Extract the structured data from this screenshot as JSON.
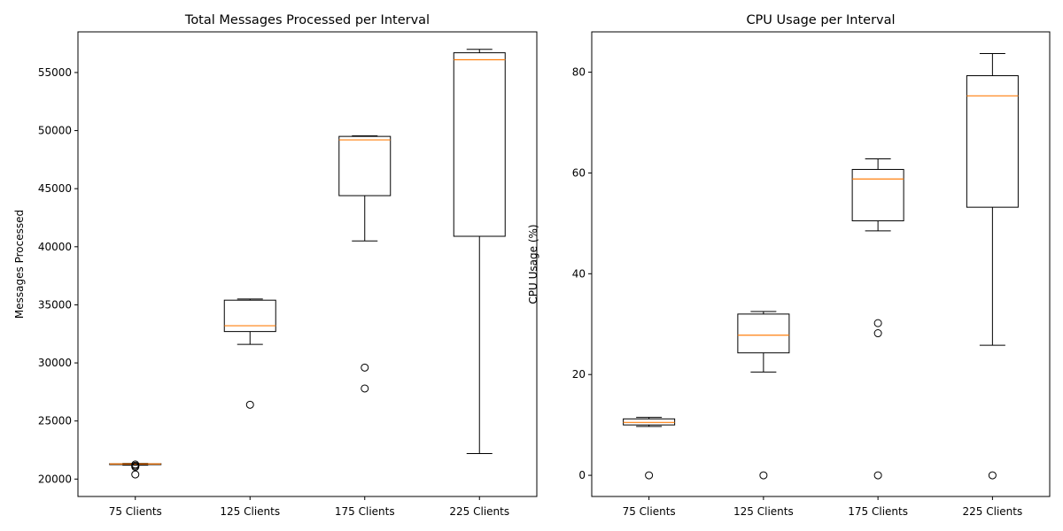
{
  "chart_data": [
    {
      "type": "box",
      "title": "Total Messages Processed per Interval",
      "ylabel": "Messages Processed",
      "xlabel": "",
      "categories": [
        "75 Clients",
        "125 Clients",
        "175 Clients",
        "225 Clients"
      ],
      "ylim": [
        18500,
        58500
      ],
      "yticks": [
        20000,
        25000,
        30000,
        35000,
        40000,
        45000,
        50000,
        55000
      ],
      "boxes": [
        {
          "whisker_low": 21200,
          "q1": 21250,
          "median": 21300,
          "q3": 21320,
          "whisker_high": 21350,
          "outliers": [
            20400,
            21050,
            21150,
            21250
          ]
        },
        {
          "whisker_low": 31600,
          "q1": 32700,
          "median": 33200,
          "q3": 35400,
          "whisker_high": 35500,
          "outliers": [
            26400
          ]
        },
        {
          "whisker_low": 40500,
          "q1": 44400,
          "median": 49200,
          "q3": 49500,
          "whisker_high": 49550,
          "outliers": [
            27800,
            29600
          ]
        },
        {
          "whisker_low": 22200,
          "q1": 40900,
          "median": 56100,
          "q3": 56700,
          "whisker_high": 57000,
          "outliers": []
        }
      ],
      "grid": false,
      "colors": {
        "box": "#000000",
        "median": "#ff7f0e"
      }
    },
    {
      "type": "box",
      "title": "CPU Usage per Interval",
      "ylabel": "CPU Usage (%)",
      "xlabel": "",
      "categories": [
        "75 Clients",
        "125 Clients",
        "175 Clients",
        "225 Clients"
      ],
      "ylim": [
        -4.2,
        88
      ],
      "yticks": [
        0,
        20,
        40,
        60,
        80
      ],
      "boxes": [
        {
          "whisker_low": 9.7,
          "q1": 10.0,
          "median": 10.5,
          "q3": 11.2,
          "whisker_high": 11.5,
          "outliers": [
            0
          ]
        },
        {
          "whisker_low": 20.5,
          "q1": 24.3,
          "median": 27.8,
          "q3": 32.0,
          "whisker_high": 32.5,
          "outliers": [
            0
          ]
        },
        {
          "whisker_low": 48.5,
          "q1": 50.5,
          "median": 58.8,
          "q3": 60.7,
          "whisker_high": 62.8,
          "outliers": [
            0,
            28.2,
            30.2
          ]
        },
        {
          "whisker_low": 25.8,
          "q1": 53.2,
          "median": 75.3,
          "q3": 79.3,
          "whisker_high": 83.7,
          "outliers": [
            0
          ]
        }
      ],
      "grid": false,
      "colors": {
        "box": "#000000",
        "median": "#ff7f0e"
      }
    }
  ]
}
